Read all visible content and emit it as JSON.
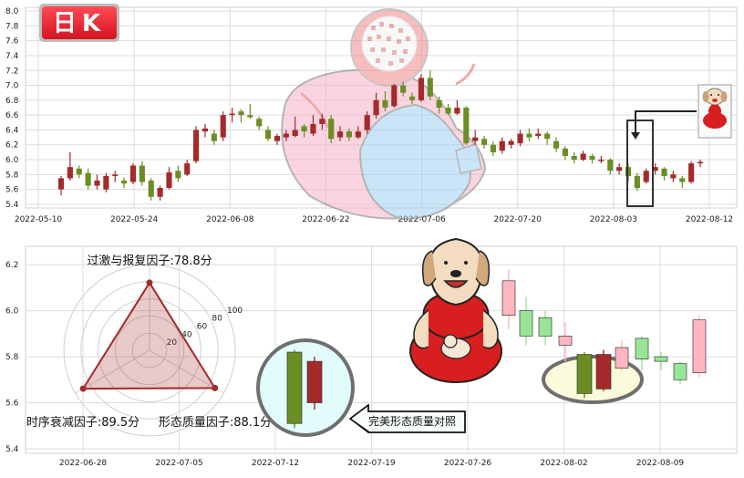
{
  "badge": {
    "text": "日K",
    "color": "#e8222e"
  },
  "colors": {
    "up": "#a52a2a",
    "down": "#6b8e23",
    "up_light": "#ffb6c1",
    "down_light": "#98e598"
  },
  "chart_data": [
    {
      "type": "candlestick",
      "name": "top",
      "ylim": [
        5.35,
        8.05
      ],
      "yticks": [
        5.4,
        5.6,
        5.8,
        6.0,
        6.2,
        6.4,
        6.6,
        6.8,
        7.0,
        7.2,
        7.4,
        7.6,
        7.8,
        8.0
      ],
      "xtick_labels": [
        "2022-05-10",
        "2022-05-24",
        "2022-06-08",
        "2022-06-22",
        "2022-07-06",
        "2022-07-20",
        "2022-08-03",
        "2022-08-12"
      ],
      "grid": true,
      "candles": [
        [
          5.6,
          5.75,
          5.78,
          5.52
        ],
        [
          5.75,
          5.9,
          6.1,
          5.72
        ],
        [
          5.88,
          5.8,
          5.92,
          5.75
        ],
        [
          5.82,
          5.65,
          5.88,
          5.6
        ],
        [
          5.65,
          5.72,
          5.8,
          5.6
        ],
        [
          5.6,
          5.78,
          5.82,
          5.56
        ],
        [
          5.78,
          5.8,
          5.85,
          5.7
        ],
        [
          5.72,
          5.68,
          5.76,
          5.62
        ],
        [
          5.7,
          5.92,
          5.95,
          5.67
        ],
        [
          5.92,
          5.7,
          5.98,
          5.65
        ],
        [
          5.72,
          5.5,
          5.75,
          5.45
        ],
        [
          5.5,
          5.62,
          5.65,
          5.45
        ],
        [
          5.62,
          5.83,
          5.9,
          5.6
        ],
        [
          5.85,
          5.75,
          5.92,
          5.7
        ],
        [
          5.8,
          5.95,
          6.0,
          5.78
        ],
        [
          5.98,
          6.4,
          6.45,
          5.95
        ],
        [
          6.38,
          6.42,
          6.48,
          6.3
        ],
        [
          6.35,
          6.25,
          6.4,
          6.2
        ],
        [
          6.3,
          6.6,
          6.65,
          6.25
        ],
        [
          6.6,
          6.62,
          6.7,
          6.5
        ],
        [
          6.65,
          6.6,
          6.68,
          6.5
        ],
        [
          6.6,
          6.57,
          6.75,
          6.55
        ],
        [
          6.55,
          6.45,
          6.58,
          6.4
        ],
        [
          6.4,
          6.28,
          6.45,
          6.25
        ],
        [
          6.25,
          6.32,
          6.35,
          6.2
        ],
        [
          6.3,
          6.35,
          6.4,
          6.25
        ],
        [
          6.32,
          6.4,
          6.58,
          6.3
        ],
        [
          6.45,
          6.38,
          6.48,
          6.3
        ],
        [
          6.35,
          6.48,
          6.6,
          6.32
        ],
        [
          6.48,
          6.55,
          6.62,
          6.4
        ],
        [
          6.55,
          6.28,
          6.6,
          6.22
        ],
        [
          6.3,
          6.38,
          6.45,
          6.25
        ],
        [
          6.38,
          6.3,
          6.42,
          6.25
        ],
        [
          6.3,
          6.38,
          6.45,
          6.28
        ],
        [
          6.4,
          6.6,
          6.65,
          6.35
        ],
        [
          6.6,
          6.8,
          6.9,
          6.55
        ],
        [
          6.8,
          6.7,
          6.92,
          6.65
        ],
        [
          6.72,
          7.0,
          7.02,
          6.7
        ],
        [
          7.0,
          6.9,
          7.05,
          6.85
        ],
        [
          6.85,
          6.8,
          6.9,
          6.75
        ],
        [
          6.8,
          7.1,
          7.15,
          6.78
        ],
        [
          7.1,
          6.85,
          7.2,
          6.8
        ],
        [
          6.8,
          6.7,
          6.85,
          6.62
        ],
        [
          6.7,
          6.62,
          6.75,
          6.6
        ],
        [
          6.62,
          6.7,
          6.8,
          6.6
        ],
        [
          6.7,
          6.22,
          6.72,
          6.2
        ],
        [
          6.25,
          6.3,
          6.4,
          6.2
        ],
        [
          6.28,
          6.2,
          6.32,
          6.15
        ],
        [
          6.2,
          6.1,
          6.25,
          6.05
        ],
        [
          6.12,
          6.25,
          6.3,
          6.08
        ],
        [
          6.2,
          6.25,
          6.28,
          6.15
        ],
        [
          6.22,
          6.35,
          6.4,
          6.18
        ],
        [
          6.35,
          6.3,
          6.42,
          6.25
        ],
        [
          6.32,
          6.35,
          6.42,
          6.28
        ],
        [
          6.35,
          6.28,
          6.38,
          6.2
        ],
        [
          6.25,
          6.15,
          6.3,
          6.1
        ],
        [
          6.15,
          6.05,
          6.18,
          6.0
        ],
        [
          6.05,
          6.0,
          6.1,
          5.95
        ],
        [
          6.0,
          6.08,
          6.12,
          5.98
        ],
        [
          6.05,
          6.0,
          6.08,
          5.95
        ],
        [
          6.0,
          6.0,
          6.05,
          5.95
        ],
        [
          6.0,
          5.85,
          6.02,
          5.8
        ],
        [
          5.85,
          5.9,
          5.95,
          5.8
        ],
        [
          5.9,
          5.78,
          5.95,
          5.7
        ],
        [
          5.78,
          5.62,
          5.82,
          5.58
        ],
        [
          5.7,
          5.85,
          5.88,
          5.68
        ],
        [
          5.85,
          5.9,
          5.95,
          5.8
        ],
        [
          5.88,
          5.78,
          5.9,
          5.72
        ],
        [
          5.75,
          5.8,
          5.85,
          5.7
        ],
        [
          5.75,
          5.7,
          5.78,
          5.62
        ],
        [
          5.7,
          5.95,
          5.98,
          5.68
        ],
        [
          5.95,
          5.97,
          6.0,
          5.9
        ]
      ]
    },
    {
      "type": "candlestick",
      "name": "bottom",
      "ylim": [
        5.38,
        6.28
      ],
      "yticks": [
        5.4,
        5.6,
        5.8,
        6.0,
        6.2
      ],
      "xtick_labels": [
        "2022-06-28",
        "2022-07-05",
        "2022-07-12",
        "2022-07-19",
        "2022-07-26",
        "2022-08-02",
        "2022-08-09"
      ],
      "grid": true,
      "faded_candles": [
        [
          5.98,
          6.13,
          6.18,
          5.92
        ],
        [
          6.0,
          5.89,
          6.06,
          5.85
        ],
        [
          5.97,
          5.89,
          6.0,
          5.85
        ],
        [
          5.85,
          5.89,
          5.95,
          5.78
        ],
        [
          5.75,
          5.84,
          5.87,
          5.74
        ],
        [
          5.88,
          5.79,
          5.89,
          5.74
        ],
        [
          5.8,
          5.78,
          5.82,
          5.74
        ],
        [
          5.77,
          5.7,
          5.78,
          5.68
        ],
        [
          5.73,
          5.96,
          5.98,
          5.71
        ]
      ],
      "compare_candles": [
        [
          5.81,
          5.64,
          5.82,
          5.62
        ],
        [
          5.66,
          5.81,
          5.83,
          5.65
        ]
      ],
      "pattern_candles": [
        [
          5.82,
          5.51,
          5.83,
          5.49
        ],
        [
          5.6,
          5.78,
          5.8,
          5.57
        ]
      ]
    },
    {
      "type": "radar",
      "max": 100,
      "rings": [
        20,
        40,
        60,
        80,
        100
      ],
      "ring_labels": [
        "20",
        "40",
        "60",
        "80",
        "100"
      ],
      "axes": [
        {
          "label": "过激与报复因子:78.8分",
          "value": 78.8
        },
        {
          "label": "形态质量因子:88.1分",
          "value": 88.1
        },
        {
          "label": "时序衰减因子:89.5分",
          "value": 89.5
        }
      ],
      "color": "#a52a2a"
    }
  ],
  "callout": {
    "text": "完美形态质量对照"
  }
}
